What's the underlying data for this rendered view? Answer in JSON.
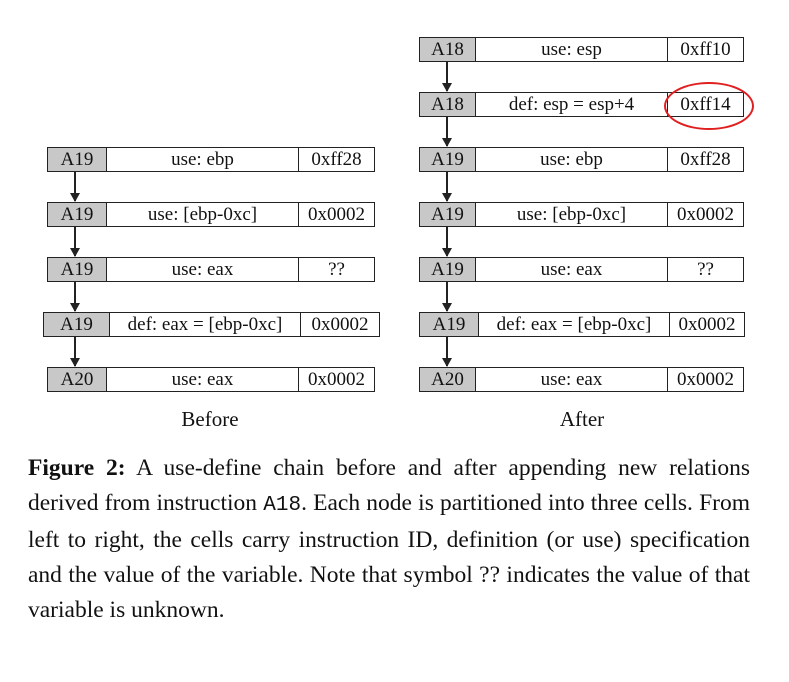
{
  "before": {
    "label": "Before",
    "nodes": [
      {
        "id": "A19",
        "spec": "use: ebp",
        "value": "0xff28"
      },
      {
        "id": "A19",
        "spec": "use: [ebp-0xc]",
        "value": "0x0002"
      },
      {
        "id": "A19",
        "spec": "use: eax",
        "value": "??"
      },
      {
        "id": "A19",
        "spec": "def: eax = [ebp-0xc]",
        "value": "0x0002"
      },
      {
        "id": "A20",
        "spec": "use: eax",
        "value": "0x0002"
      }
    ]
  },
  "after": {
    "label": "After",
    "nodes": [
      {
        "id": "A18",
        "spec": "use: esp",
        "value": "0xff10"
      },
      {
        "id": "A18",
        "spec": "def: esp = esp+4",
        "value": "0xff14"
      },
      {
        "id": "A19",
        "spec": "use: ebp",
        "value": "0xff28"
      },
      {
        "id": "A19",
        "spec": "use: [ebp-0xc]",
        "value": "0x0002"
      },
      {
        "id": "A19",
        "spec": "use: eax",
        "value": "??"
      },
      {
        "id": "A19",
        "spec": "def: eax = [ebp-0xc]",
        "value": "0x0002"
      },
      {
        "id": "A20",
        "spec": "use: eax",
        "value": "0x0002"
      }
    ]
  },
  "caption": {
    "label": "Figure 2:",
    "text_1": " A use-define chain before and after appending new relations derived from instruction ",
    "code": "A18",
    "text_2": ". Each node is partitioned into three cells. From left to right, the cells carry instruction ID, definition (or use) specification and the value of the variable. Note that symbol ?? indicates the value of that variable is unknown."
  }
}
